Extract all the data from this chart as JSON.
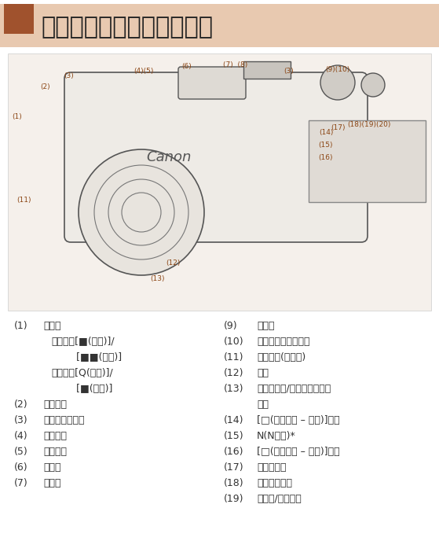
{
  "title": "部件名称及本指南编辑常规",
  "title_bg_color": "#e8c9b0",
  "title_square_color": "#a0522d",
  "title_fontsize": 22,
  "body_bg_color": "#ffffff",
  "text_color_dark": "#333333",
  "text_color_brown": "#8B4513",
  "left_items": [
    [
      "(1)",
      "变焦杆"
    ],
    [
      "",
      "拍摄时：[■(长焦)]/"
    ],
    [
      "",
      "    [■■(广角)]"
    ],
    [
      "",
      "播放时：[Q(放大)]/"
    ],
    [
      "",
      "    [■(索引)]"
    ],
    [
      "(2)",
      "快门按钮"
    ],
    [
      "(3)",
      "相机带安装部位"
    ],
    [
      "(4)",
      "电子转盘"
    ],
    [
      "(5)",
      "模式转盘"
    ],
    [
      "(6)",
      "闪光灯"
    ],
    [
      "(7)",
      "麦克风"
    ]
  ],
  "right_items": [
    [
      "(9)",
      "扬声器"
    ],
    [
      "(10)",
      "外接麦克风输入端子"
    ],
    [
      "(11)",
      "焦距标记(近似值)"
    ],
    [
      "(12)",
      "镜头"
    ],
    [
      "(13)",
      "镜头遮光罩/滤镜转换器安装"
    ],
    [
      "",
      "部位"
    ],
    [
      "(14)",
      "[□(构图辅助 – 查找)]按钮"
    ],
    [
      "(15)",
      "N(N标记)*"
    ],
    [
      "(16)",
      "[□(构图辅助 – 锁定)]按钮"
    ],
    [
      "(17)",
      "三脚架插孔"
    ],
    [
      "(18)",
      "解除锁定开关"
    ],
    [
      "(19)",
      "存储卡/电池仓盖"
    ]
  ]
}
